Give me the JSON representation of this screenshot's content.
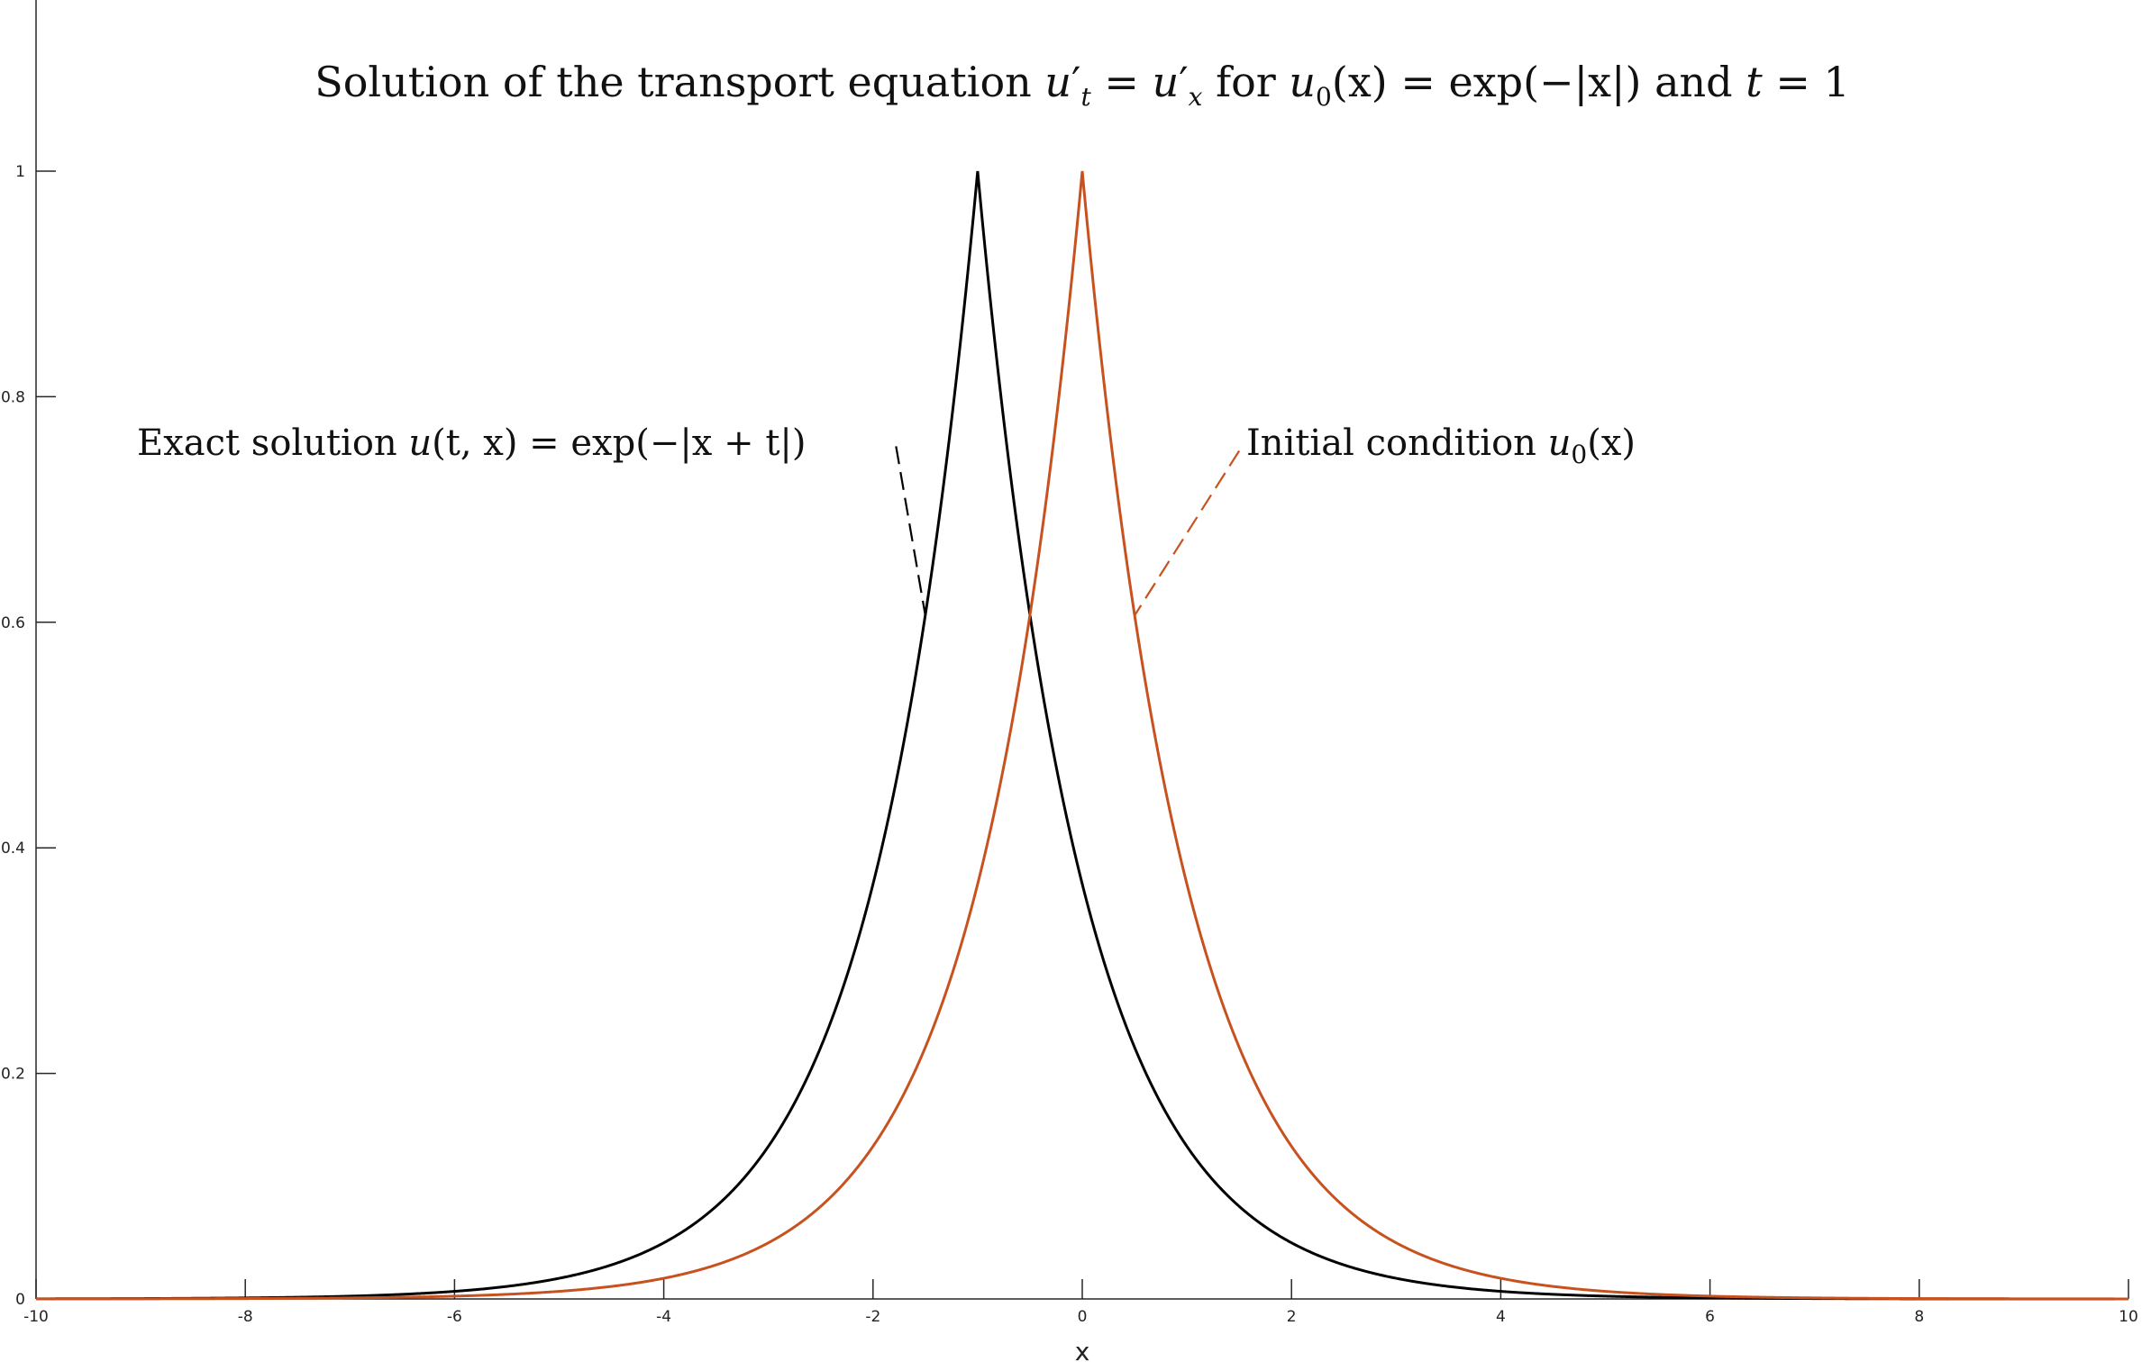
{
  "chart_data": {
    "type": "line",
    "title_parts": {
      "a": "Solution of the transport equation ",
      "u1": "u",
      "sup1": "′",
      "sub_t": "t",
      "eq": " = ",
      "u2": "u",
      "sup2": "′",
      "sub_x": "x",
      "for": " for ",
      "u0": "u",
      "sub0": "0",
      "rest": "(x) = exp(−|x|) and ",
      "t": "t",
      "tail": " = 1"
    },
    "xlabel": "x",
    "ylabel": "",
    "xlim": [
      -10,
      10
    ],
    "ylim": [
      0,
      1.1
    ],
    "xticks": [
      -10,
      -8,
      -6,
      -4,
      -2,
      0,
      2,
      4,
      6,
      8,
      10
    ],
    "yticks": [
      0,
      0.2,
      0.4,
      0.6,
      0.8,
      1
    ],
    "grid": false,
    "legend": "none",
    "series": [
      {
        "function": "exp(-|x+1|)",
        "color": "#000000",
        "x_range": [
          -10,
          10
        ]
      },
      {
        "function": "exp(-|x|)",
        "color": "#c8521f",
        "x_range": [
          -10,
          10
        ]
      }
    ],
    "annotations": [
      {
        "label_parts": {
          "a": "Exact solution ",
          "m1": "u",
          "m2": "(t, x) = exp(−|x + t|)"
        },
        "from": [
          -1.78,
          0.756
        ],
        "to": [
          -1.5,
          0.606
        ],
        "color": "#000000"
      },
      {
        "label_parts": {
          "a": "Initial condition ",
          "m1": "u",
          "sub": "0",
          "m2": "(x)"
        },
        "from": [
          1.5,
          0.752
        ],
        "to": [
          0.5,
          0.606
        ],
        "color": "#c8521f"
      }
    ]
  }
}
